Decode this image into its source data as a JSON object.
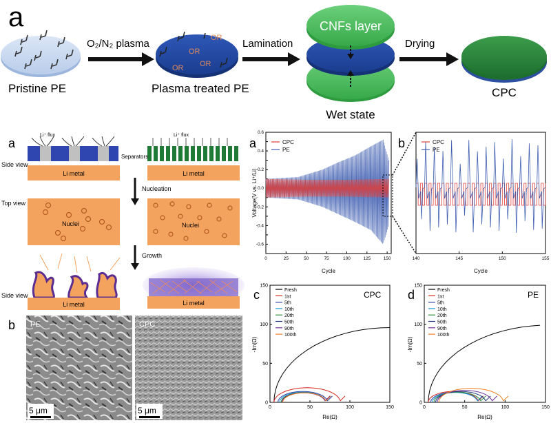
{
  "figure_top": {
    "panel_letter": "a",
    "stage1": {
      "label": "Pristine PE",
      "group": "H"
    },
    "arrow1_label": "O₂/N₂ plasma",
    "stage2": {
      "label": "Plasma treated PE",
      "group": "OR"
    },
    "arrow2_label": "Lamination",
    "stage3": {
      "top_layer": "CNFs layer",
      "label": "Wet state"
    },
    "arrow3_label": "Drying",
    "stage4": {
      "label": "CPC"
    }
  },
  "schematic": {
    "panel_letter": "a",
    "flux_label_left": "Li⁺ flux",
    "flux_label_right": "Li⁺ flux",
    "separators_label": "Separators",
    "side_view_label": "Side view",
    "top_view_label": "Top view",
    "side_view_label_2": "Side view",
    "li_metal": "Li metal",
    "nucleation": "Nucleation",
    "nuclei": "Nuclei",
    "growth": "Growth"
  },
  "sem": {
    "panel_letter": "b",
    "left_label": "PE",
    "right_label": "CPC",
    "scale_left": "5 μm",
    "scale_right": "5 μm"
  },
  "chart_data": [
    {
      "id": "voltage-full",
      "type": "line",
      "panel_letter": "a",
      "xlabel": "Cycle",
      "ylabel": "Voltage(V vs. Li⁺/Li)",
      "xlim": [
        0,
        155
      ],
      "ylim": [
        -0.7,
        0.6
      ],
      "xticks": [
        0,
        25,
        50,
        75,
        100,
        125,
        150
      ],
      "yticks": [
        -0.6,
        -0.5,
        -0.4,
        -0.3,
        -0.2,
        -0.1,
        0.0,
        0.1,
        0.2,
        0.3,
        0.4,
        0.5,
        0.6
      ],
      "legend": [
        "CPC",
        "PE"
      ],
      "series": [
        {
          "name": "CPC",
          "color": "#e0403a",
          "x": [
            0,
            50,
            100,
            150
          ],
          "y_upper": [
            0.1,
            0.09,
            0.09,
            0.1
          ],
          "y_lower": [
            -0.1,
            -0.09,
            -0.09,
            -0.1
          ]
        },
        {
          "name": "PE",
          "color": "#3e5db0",
          "x": [
            0,
            40,
            70,
            90,
            110,
            130,
            145,
            152
          ],
          "y_upper": [
            0.1,
            0.12,
            0.2,
            0.28,
            0.35,
            0.45,
            0.52,
            0.3
          ],
          "y_lower": [
            -0.1,
            -0.12,
            -0.2,
            -0.28,
            -0.36,
            -0.45,
            -0.6,
            -0.4
          ]
        }
      ]
    },
    {
      "id": "voltage-zoom",
      "type": "line",
      "panel_letter": "b",
      "xlabel": "Cycle",
      "ylabel": "Voltage(V vs. Li⁺/Li)",
      "xlim": [
        140,
        155
      ],
      "xticks": [
        140,
        145,
        150,
        155
      ],
      "legend": [
        "CPC",
        "PE"
      ],
      "series": [
        {
          "name": "CPC",
          "color": "#e0403a",
          "amplitude_V": 0.1
        },
        {
          "name": "PE",
          "color": "#3e5db0",
          "amplitude_V": 0.5
        }
      ]
    },
    {
      "id": "eis-cpc",
      "type": "line",
      "panel_letter": "c",
      "title": "CPC",
      "xlabel": "Re(Ω)",
      "ylabel": "-Im(Ω)",
      "xlim": [
        0,
        150
      ],
      "ylim": [
        0,
        150
      ],
      "xticks": [
        0,
        50,
        100,
        150
      ],
      "yticks": [
        0,
        50,
        100,
        150
      ],
      "legend": [
        "Fresh",
        "1st",
        "5th",
        "10th",
        "20th",
        "50th",
        "90th",
        "100th"
      ],
      "series": [
        {
          "name": "Fresh",
          "color": "#000000",
          "start": 5,
          "diameter": 290
        },
        {
          "name": "1st",
          "color": "#d7261e",
          "start": 5,
          "diameter": 83
        },
        {
          "name": "5th",
          "color": "#2a3fa8",
          "start": 10,
          "diameter": 62
        },
        {
          "name": "10th",
          "color": "#1f9bd7",
          "start": 12,
          "diameter": 58
        },
        {
          "name": "20th",
          "color": "#2e8b3e",
          "start": 14,
          "diameter": 56
        },
        {
          "name": "50th",
          "color": "#243a7a",
          "start": 15,
          "diameter": 55
        },
        {
          "name": "90th",
          "color": "#6a2e9a",
          "start": 15,
          "diameter": 54
        },
        {
          "name": "100th",
          "color": "#f08020",
          "start": 16,
          "diameter": 54
        }
      ]
    },
    {
      "id": "eis-pe",
      "type": "line",
      "panel_letter": "d",
      "title": "PE",
      "xlabel": "Re(Ω)",
      "ylabel": "-Im(Ω)",
      "xlim": [
        0,
        150
      ],
      "ylim": [
        0,
        150
      ],
      "xticks": [
        0,
        50,
        100,
        150
      ],
      "yticks": [
        0,
        50,
        100,
        150
      ],
      "legend": [
        "Fresh",
        "1st",
        "5th",
        "10th",
        "20th",
        "50th",
        "90th",
        "100th"
      ],
      "series": [
        {
          "name": "Fresh",
          "color": "#000000",
          "start": 5,
          "diameter": 300
        },
        {
          "name": "1st",
          "color": "#d7261e",
          "start": 5,
          "diameter": 62
        },
        {
          "name": "5th",
          "color": "#2a3fa8",
          "start": 8,
          "diameter": 58
        },
        {
          "name": "10th",
          "color": "#1f9bd7",
          "start": 10,
          "diameter": 56
        },
        {
          "name": "20th",
          "color": "#2e8b3e",
          "start": 12,
          "diameter": 58
        },
        {
          "name": "50th",
          "color": "#243a7a",
          "start": 14,
          "diameter": 62
        },
        {
          "name": "90th",
          "color": "#6a2e9a",
          "start": 16,
          "diameter": 68
        },
        {
          "name": "100th",
          "color": "#f08020",
          "start": 18,
          "diameter": 80
        }
      ]
    }
  ]
}
